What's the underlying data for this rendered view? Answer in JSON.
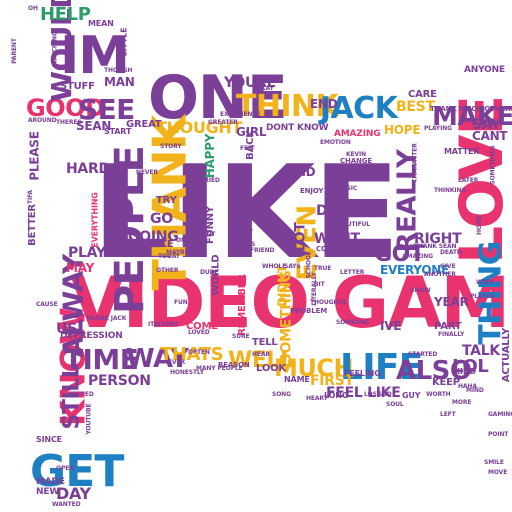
{
  "palette": {
    "purple": "#7b3f98",
    "pink": "#e8336f",
    "gold": "#f2b21a",
    "blue": "#1f7fc3",
    "green": "#2a9d6a",
    "teal": "#33a8a8",
    "background": "#ffffff"
  },
  "words": [
    {
      "text": "LIKE",
      "color": "purple"
    },
    {
      "text": "VIDEO GAME",
      "color": "pink"
    },
    {
      "text": "IM",
      "color": "purple"
    },
    {
      "text": "ONE",
      "color": "purple"
    },
    {
      "text": "THINK",
      "color": "gold"
    },
    {
      "text": "JACK",
      "color": "blue"
    },
    {
      "text": "LOVE",
      "color": "pink"
    },
    {
      "text": "THANK",
      "color": "gold"
    },
    {
      "text": "PEOPLE",
      "color": "purple"
    },
    {
      "text": "KNOW",
      "color": "pink"
    },
    {
      "text": "ALWAY",
      "color": "purple"
    },
    {
      "text": "GET",
      "color": "blue"
    },
    {
      "text": "TIME",
      "color": "purple"
    },
    {
      "text": "WAY",
      "color": "purple"
    },
    {
      "text": "THATS",
      "color": "gold"
    },
    {
      "text": "MUCH",
      "color": "gold"
    },
    {
      "text": "LIFE",
      "color": "blue"
    },
    {
      "text": "ALSO",
      "color": "purple"
    },
    {
      "text": "THING",
      "color": "blue"
    },
    {
      "text": "MAKE",
      "color": "purple"
    },
    {
      "text": "NEEDFRIEND",
      "color": "gold"
    },
    {
      "text": "REALLY",
      "color": "purple"
    },
    {
      "text": "EVEN",
      "color": "gold"
    },
    {
      "text": "GOOD",
      "color": "pink"
    },
    {
      "text": "SEE",
      "color": "purple"
    },
    {
      "text": "WOULD",
      "color": "purple"
    },
    {
      "text": "HELP",
      "color": "green"
    },
    {
      "text": "GOT",
      "color": "purple"
    },
    {
      "text": "RIGHT",
      "color": "purple"
    },
    {
      "text": "EVERYONE",
      "color": "blue"
    },
    {
      "text": "WANT",
      "color": "purple"
    },
    {
      "text": "DONT",
      "color": "purple"
    },
    {
      "text": "WELL",
      "color": "gold"
    },
    {
      "text": "STILL",
      "color": "purple"
    },
    {
      "text": "FEEL LIKE",
      "color": "purple"
    },
    {
      "text": "LOL",
      "color": "purple"
    },
    {
      "text": "DAY",
      "color": "purple"
    },
    {
      "text": "HARD",
      "color": "purple"
    },
    {
      "text": "SAID",
      "color": "purple"
    },
    {
      "text": "BEST",
      "color": "gold"
    },
    {
      "text": "SAY",
      "color": "purple"
    },
    {
      "text": "CANT",
      "color": "purple"
    },
    {
      "text": "LOT",
      "color": "purple"
    },
    {
      "text": "GO",
      "color": "purple"
    },
    {
      "text": "GOING",
      "color": "purple"
    },
    {
      "text": "PLAY",
      "color": "purple"
    },
    {
      "text": "MAY",
      "color": "pink"
    },
    {
      "text": "US",
      "color": "purple"
    },
    {
      "text": "PERSON",
      "color": "purple"
    },
    {
      "text": "TALK",
      "color": "purple"
    },
    {
      "text": "KEEP",
      "color": "purple"
    },
    {
      "text": "THOUGHT",
      "color": "gold"
    },
    {
      "text": "MAN",
      "color": "purple"
    },
    {
      "text": "GIRL",
      "color": "purple"
    },
    {
      "text": "HOPE",
      "color": "gold"
    },
    {
      "text": "IVE",
      "color": "purple"
    },
    {
      "text": "YEAR",
      "color": "purple"
    },
    {
      "text": "SOMETHING",
      "color": "gold"
    },
    {
      "text": "FIRST",
      "color": "gold"
    },
    {
      "text": "YOURE",
      "color": "purple"
    },
    {
      "text": "END",
      "color": "purple"
    },
    {
      "text": "WORLD",
      "color": "purple"
    },
    {
      "text": "FUNNY",
      "color": "purple"
    },
    {
      "text": "HAPPY",
      "color": "green"
    },
    {
      "text": "TRY",
      "color": "purple"
    },
    {
      "text": "CARE",
      "color": "purple"
    },
    {
      "text": "ANYONE",
      "color": "purple"
    },
    {
      "text": "DEPRESSION",
      "color": "purple"
    },
    {
      "text": "MADE",
      "color": "purple"
    },
    {
      "text": "NEW",
      "color": "purple"
    },
    {
      "text": "LITTLE",
      "color": "purple"
    },
    {
      "text": "MEAN",
      "color": "purple"
    },
    {
      "text": "STUFF",
      "color": "purple"
    },
    {
      "text": "SEAN",
      "color": "purple"
    },
    {
      "text": "START",
      "color": "purple"
    },
    {
      "text": "GREAT",
      "color": "purple"
    },
    {
      "text": "PLEASE",
      "color": "purple"
    },
    {
      "text": "BETTER",
      "color": "purple"
    },
    {
      "text": "SINCE",
      "color": "purple"
    },
    {
      "text": "TAKE",
      "color": "purple"
    },
    {
      "text": "DIDNT",
      "color": "gold"
    },
    {
      "text": "LOOK",
      "color": "purple"
    },
    {
      "text": "TELL",
      "color": "purple"
    },
    {
      "text": "COME",
      "color": "pink"
    },
    {
      "text": "REMEMBER",
      "color": "pink"
    },
    {
      "text": "ACTUALLY",
      "color": "purple"
    },
    {
      "text": "PART",
      "color": "purple"
    },
    {
      "text": "NAME",
      "color": "purple"
    },
    {
      "text": "LONG",
      "color": "purple"
    },
    {
      "text": "KIND",
      "color": "purple"
    },
    {
      "text": "GUY",
      "color": "purple"
    },
    {
      "text": "THANK MUCH OTHERS",
      "color": "purple"
    },
    {
      "text": "DONT KNOW",
      "color": "purple"
    },
    {
      "text": "AMAZING",
      "color": "pink"
    },
    {
      "text": "BACK",
      "color": "purple"
    },
    {
      "text": "FEELING",
      "color": "purple"
    },
    {
      "text": "CHANGE",
      "color": "purple"
    },
    {
      "text": "COMMENT",
      "color": "purple"
    },
    {
      "text": "ENJOY",
      "color": "purple"
    },
    {
      "text": "THANK SEAN",
      "color": "purple"
    },
    {
      "text": "POINT",
      "color": "purple"
    },
    {
      "text": "WATCHING",
      "color": "purple"
    },
    {
      "text": "BEAUTIFUL",
      "color": "purple"
    },
    {
      "text": "EVERYTHING",
      "color": "pink"
    },
    {
      "text": "MATTER",
      "color": "purple"
    },
    {
      "text": "PLAYING",
      "color": "purple"
    },
    {
      "text": "THINKING",
      "color": "purple"
    },
    {
      "text": "NEVER",
      "color": "purple"
    },
    {
      "text": "GIVE",
      "color": "purple"
    },
    {
      "text": "REASON",
      "color": "purple"
    },
    {
      "text": "PROBLEM",
      "color": "purple"
    },
    {
      "text": "OKAY",
      "color": "purple"
    },
    {
      "text": "ITALKING",
      "color": "purple"
    },
    {
      "text": "MANY PEOPLE",
      "color": "purple"
    },
    {
      "text": "EVER",
      "color": "purple"
    },
    {
      "text": "FINALLY",
      "color": "purple"
    },
    {
      "text": "THOUGH",
      "color": "purple"
    },
    {
      "text": "YOUTUBE",
      "color": "purple"
    },
    {
      "text": "HONESTLY",
      "color": "purple"
    },
    {
      "text": "CRIED",
      "color": "purple"
    },
    {
      "text": "ISNT",
      "color": "purple"
    },
    {
      "text": "SCHOOL",
      "color": "purple"
    },
    {
      "text": "STARTED",
      "color": "purple"
    },
    {
      "text": "FRIEND",
      "color": "purple"
    },
    {
      "text": "DUDE",
      "color": "purple"
    },
    {
      "text": "HELPED",
      "color": "purple"
    },
    {
      "text": "LEFT",
      "color": "purple"
    },
    {
      "text": "OPEN",
      "color": "purple"
    },
    {
      "text": "WANTED",
      "color": "purple"
    },
    {
      "text": "PARENT",
      "color": "purple"
    },
    {
      "text": "OH",
      "color": "purple"
    },
    {
      "text": "OTHER",
      "color": "purple"
    },
    {
      "text": "MOST",
      "color": "purple"
    },
    {
      "text": "DAYS",
      "color": "purple"
    },
    {
      "text": "GREATER",
      "color": "purple"
    },
    {
      "text": "TIFA",
      "color": "purple"
    },
    {
      "text": "LOVED",
      "color": "purple"
    },
    {
      "text": "FELT",
      "color": "purple"
    },
    {
      "text": "KEVIN",
      "color": "purple"
    },
    {
      "text": "CAUSE",
      "color": "purple"
    },
    {
      "text": "BIT",
      "color": "purple"
    },
    {
      "text": "SHOW",
      "color": "purple"
    },
    {
      "text": "THANK JACK",
      "color": "purple"
    },
    {
      "text": "HEAR",
      "color": "purple"
    },
    {
      "text": "LETTER",
      "color": "purple"
    },
    {
      "text": "SAYS",
      "color": "purple"
    },
    {
      "text": "AROUND",
      "color": "purple"
    },
    {
      "text": "SOMEONE",
      "color": "purple"
    },
    {
      "text": "THERES",
      "color": "purple"
    },
    {
      "text": "HOME",
      "color": "purple"
    },
    {
      "text": "DEATH",
      "color": "purple"
    },
    {
      "text": "ANOTHER",
      "color": "purple"
    },
    {
      "text": "CHARACTER",
      "color": "purple"
    },
    {
      "text": "PLAYED",
      "color": "purple"
    },
    {
      "text": "MUSIC",
      "color": "purple"
    },
    {
      "text": "WISH",
      "color": "purple"
    },
    {
      "text": "TODAY",
      "color": "purple"
    },
    {
      "text": "SURE",
      "color": "purple"
    },
    {
      "text": "OFTEN",
      "color": "purple"
    },
    {
      "text": "WORTH",
      "color": "purple"
    },
    {
      "text": "LOST",
      "color": "purple"
    },
    {
      "text": "SAD",
      "color": "purple"
    },
    {
      "text": "TRUE",
      "color": "purple"
    },
    {
      "text": "SOUL",
      "color": "purple"
    },
    {
      "text": "SONG",
      "color": "purple"
    },
    {
      "text": "MIND",
      "color": "purple"
    },
    {
      "text": "HEART",
      "color": "purple"
    },
    {
      "text": "LITERALLY",
      "color": "purple"
    },
    {
      "text": "EXPERIENCE",
      "color": "purple"
    },
    {
      "text": "STORY",
      "color": "purple"
    },
    {
      "text": "EMOTION",
      "color": "purple"
    },
    {
      "text": "ONLY",
      "color": "purple"
    },
    {
      "text": "MAYBE",
      "color": "purple"
    },
    {
      "text": "SOMETIMES",
      "color": "purple"
    },
    {
      "text": "FUN",
      "color": "purple"
    },
    {
      "text": "HAHA",
      "color": "purple"
    },
    {
      "text": "GAMING",
      "color": "purple"
    },
    {
      "text": "LATER",
      "color": "purple"
    },
    {
      "text": "MOVE",
      "color": "purple"
    },
    {
      "text": "SMILE",
      "color": "purple"
    },
    {
      "text": "AMAZING",
      "color": "purple"
    },
    {
      "text": "WHOLE",
      "color": "purple"
    },
    {
      "text": "THOUGHTS",
      "color": "purple"
    },
    {
      "text": "MORE",
      "color": "purple"
    }
  ]
}
